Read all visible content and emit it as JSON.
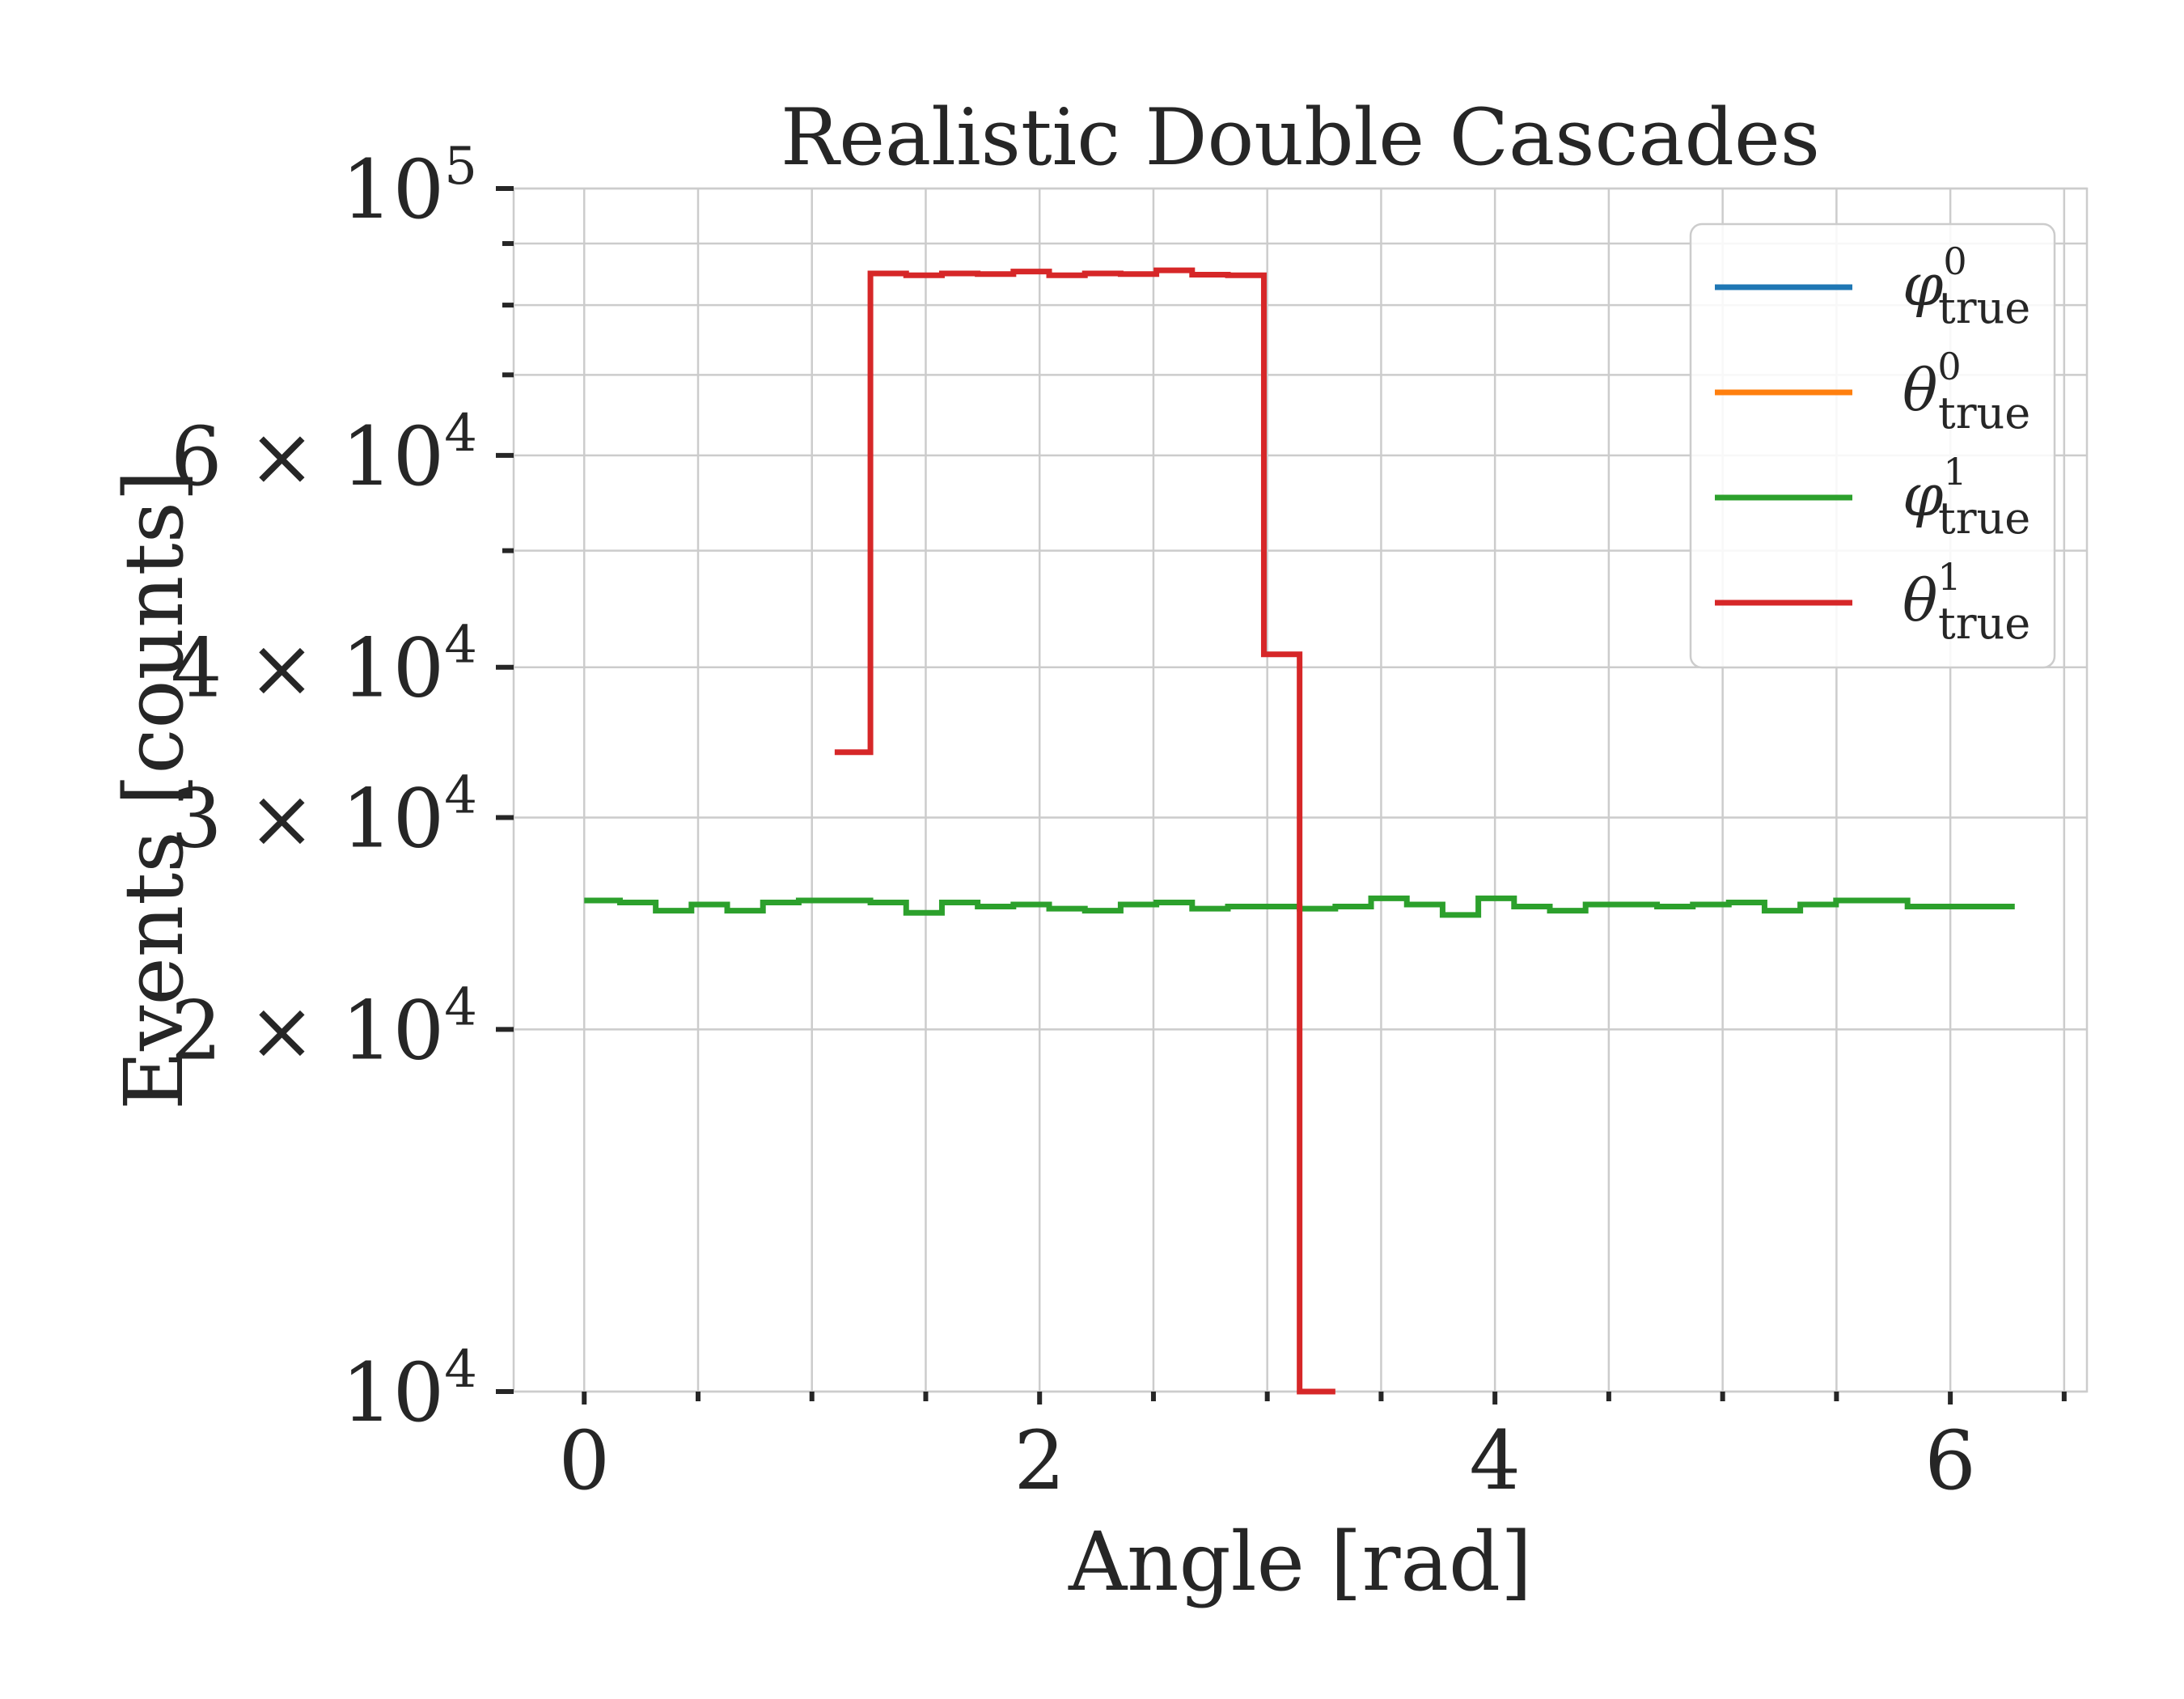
{
  "chart_data": {
    "type": "line",
    "title": "Realistic Double Cascades",
    "xlabel": "Angle [rad]",
    "ylabel": "Events [counts]",
    "xlim": [
      -0.31,
      6.6
    ],
    "ylim": [
      10000,
      100000
    ],
    "yscale": "log",
    "grid": true,
    "legend_position": "top-right",
    "x_ticks": [
      {
        "value": 0,
        "label": "0"
      },
      {
        "value": 2,
        "label": "2"
      },
      {
        "value": 4,
        "label": "4"
      },
      {
        "value": 6,
        "label": "6"
      }
    ],
    "y_ticks": [
      {
        "value": 10000,
        "base": "10",
        "exp": "4",
        "mant": ""
      },
      {
        "value": 20000,
        "base": "10",
        "exp": "4",
        "mant": "2 × "
      },
      {
        "value": 30000,
        "base": "10",
        "exp": "4",
        "mant": "3 × "
      },
      {
        "value": 40000,
        "base": "10",
        "exp": "4",
        "mant": "4 × "
      },
      {
        "value": 60000,
        "base": "10",
        "exp": "4",
        "mant": "6 × "
      },
      {
        "value": 100000,
        "base": "10",
        "exp": "5",
        "mant": ""
      }
    ],
    "x_minor_ticks": [
      0.5,
      1.0,
      1.5,
      2.5,
      3.0,
      3.5,
      4.5,
      5.0,
      5.5,
      6.5
    ],
    "y_minor_ticks": [
      50000,
      70000,
      80000,
      90000
    ],
    "series": [
      {
        "legend_symbol": "φ",
        "legend_sup": "0",
        "legend_sub": "true",
        "color": "#1f77b4",
        "x": [],
        "y": []
      },
      {
        "legend_symbol": "θ",
        "legend_sup": "0",
        "legend_sub": "true",
        "color": "#ff7f0e",
        "x": [],
        "y": []
      },
      {
        "legend_symbol": "φ",
        "legend_sup": "1",
        "legend_sub": "true",
        "color": "#2ca02c",
        "x": [
          0,
          0.157,
          0.314,
          0.471,
          0.628,
          0.785,
          0.942,
          1.1,
          1.257,
          1.414,
          1.571,
          1.728,
          1.885,
          2.042,
          2.199,
          2.356,
          2.513,
          2.67,
          2.827,
          2.985,
          3.142,
          3.299,
          3.456,
          3.613,
          3.77,
          3.927,
          4.084,
          4.241,
          4.398,
          4.555,
          4.712,
          4.869,
          5.027,
          5.184,
          5.341,
          5.498,
          5.655,
          5.812,
          5.969,
          6.126,
          6.283
        ],
        "y": [
          25600,
          25500,
          25100,
          25400,
          25100,
          25500,
          25600,
          25600,
          25500,
          25000,
          25500,
          25300,
          25400,
          25200,
          25100,
          25400,
          25500,
          25200,
          25300,
          25300,
          25200,
          25300,
          25700,
          25400,
          24900,
          25700,
          25300,
          25100,
          25400,
          25400,
          25300,
          25400,
          25500,
          25100,
          25400,
          25600,
          25600,
          25300,
          25300,
          25300,
          25300
        ]
      },
      {
        "legend_symbol": "θ",
        "legend_sup": "1",
        "legend_sub": "true",
        "color": "#d62728",
        "x": [
          1.1,
          1.257,
          1.414,
          1.571,
          1.728,
          1.885,
          2.042,
          2.199,
          2.356,
          2.513,
          2.67,
          2.827,
          2.985,
          3.142,
          3.299
        ],
        "y": [
          34000,
          85000,
          84700,
          85000,
          84900,
          85300,
          84700,
          85000,
          84900,
          85500,
          84800,
          84700,
          41000,
          10000,
          10000
        ]
      }
    ]
  }
}
